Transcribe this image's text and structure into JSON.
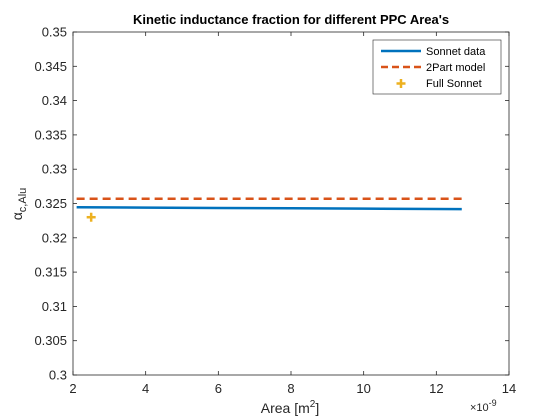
{
  "chart_data": {
    "type": "line",
    "title": "Kinetic inductance fraction for different PPC Area's",
    "xlabel_main": "Area [m",
    "xlabel_sup": "2",
    "xlabel_end": "]",
    "ylabel_main": "α",
    "ylabel_sub": "c,Alu",
    "x_exponent_base": "×10",
    "x_exponent_power": "-9",
    "xlim": [
      2,
      14
    ],
    "ylim": [
      0.3,
      0.35
    ],
    "x_ticks": [
      "2",
      "4",
      "6",
      "8",
      "10",
      "12",
      "14"
    ],
    "y_ticks": [
      "0.3",
      "0.305",
      "0.31",
      "0.315",
      "0.32",
      "0.325",
      "0.33",
      "0.335",
      "0.34",
      "0.345",
      "0.35"
    ],
    "legend_position": "top-right",
    "series": [
      {
        "name": "Sonnet data",
        "style": "solid",
        "color": "#0072BD",
        "x": [
          2.1,
          4,
          6,
          8,
          10,
          12,
          12.7
        ],
        "y": [
          0.32445,
          0.3244,
          0.32435,
          0.3243,
          0.32425,
          0.3242,
          0.32418
        ]
      },
      {
        "name": "2Part model",
        "style": "dashed",
        "color": "#D95319",
        "x": [
          2.1,
          12.7
        ],
        "y": [
          0.3257,
          0.3257
        ]
      },
      {
        "name": "Full Sonnet",
        "style": "marker",
        "color": "#EDB120",
        "x": [
          2.5
        ],
        "y": [
          0.323
        ]
      }
    ]
  }
}
